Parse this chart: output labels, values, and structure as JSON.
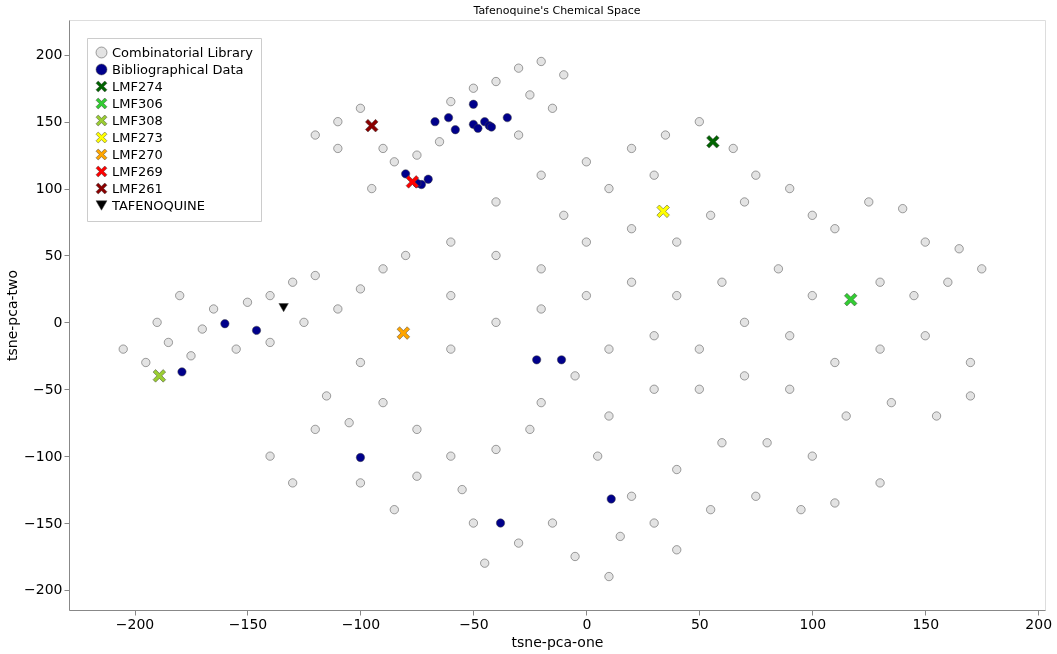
{
  "chart_data": {
    "type": "scatter",
    "title": "Tafenoquine's Chemical Space",
    "xlabel": "tsne-pca-one",
    "ylabel": "tsne-pca-two",
    "xlim": [
      -229,
      203
    ],
    "ylim": [
      -215,
      226
    ],
    "xticks": [
      -200,
      -150,
      -100,
      -50,
      0,
      50,
      100,
      150,
      200
    ],
    "yticks": [
      -200,
      -150,
      -100,
      -50,
      0,
      50,
      100,
      150,
      200
    ],
    "grid": false,
    "legend": "top left",
    "series": [
      {
        "name": "Combinatorial Library",
        "color": "#e3e3e3",
        "marker": "circle",
        "x": [
          -205,
          -195,
          -185,
          -175,
          -170,
          -165,
          -150,
          -140,
          -130,
          -120,
          -155,
          -140,
          -125,
          -110,
          -100,
          -90,
          -180,
          -190,
          -120,
          -110,
          -100,
          -90,
          -85,
          -75,
          -65,
          -60,
          -50,
          -40,
          -30,
          -20,
          -10,
          -25,
          -15,
          -30,
          -110,
          -95,
          -40,
          -20,
          0,
          10,
          20,
          35,
          50,
          65,
          75,
          30,
          -10,
          0,
          20,
          40,
          55,
          70,
          90,
          100,
          110,
          125,
          140,
          150,
          165,
          175,
          160,
          145,
          130,
          100,
          85,
          60,
          40,
          20,
          0,
          -20,
          -40,
          -60,
          -80,
          -60,
          -40,
          -20,
          -60,
          -100,
          -115,
          -120,
          -105,
          -90,
          -75,
          -60,
          -75,
          -55,
          -40,
          -20,
          -5,
          -25,
          10,
          30,
          50,
          70,
          90,
          110,
          130,
          150,
          170,
          170,
          155,
          135,
          115,
          90,
          70,
          50,
          30,
          10,
          5,
          20,
          30,
          15,
          -5,
          10,
          -15,
          -30,
          -45,
          -50,
          40,
          55,
          75,
          95,
          110,
          130,
          60,
          80,
          100,
          40,
          -140,
          -130,
          -100,
          -85
        ],
        "values": [
          -20,
          -30,
          -15,
          -25,
          -5,
          10,
          15,
          20,
          30,
          35,
          -20,
          -15,
          0,
          10,
          25,
          40,
          20,
          0,
          140,
          150,
          160,
          130,
          120,
          125,
          135,
          165,
          175,
          180,
          190,
          195,
          185,
          170,
          160,
          140,
          130,
          100,
          90,
          110,
          120,
          100,
          130,
          140,
          150,
          130,
          110,
          110,
          80,
          60,
          70,
          60,
          80,
          90,
          100,
          80,
          70,
          90,
          85,
          60,
          55,
          40,
          30,
          20,
          30,
          20,
          40,
          30,
          20,
          30,
          20,
          40,
          50,
          60,
          50,
          20,
          0,
          10,
          -20,
          -30,
          -55,
          -80,
          -75,
          -60,
          -80,
          -100,
          -115,
          -125,
          -95,
          -60,
          -40,
          -80,
          -20,
          -10,
          -20,
          0,
          -10,
          -30,
          -20,
          -10,
          -30,
          -55,
          -70,
          -60,
          -70,
          -50,
          -40,
          -50,
          -50,
          -70,
          -100,
          -130,
          -150,
          -160,
          -175,
          -190,
          -150,
          -165,
          -180,
          -150,
          -110,
          -140,
          -130,
          -140,
          -135,
          -120,
          -90,
          -90,
          -100,
          -170,
          -100,
          -120,
          -120,
          -140
        ]
      },
      {
        "name": "Bibliographical Data",
        "color": "#00008b",
        "marker": "circle",
        "x": [
          -50,
          -67,
          -61,
          -58,
          -50,
          -48,
          -45,
          -43,
          -42,
          -35,
          -80,
          -73,
          -70,
          -75,
          -160,
          -146,
          -179,
          -22,
          -11,
          -100,
          11,
          -38
        ],
        "values": [
          163,
          150,
          153,
          144,
          148,
          145,
          150,
          147,
          146,
          153,
          111,
          103,
          107,
          104,
          -1,
          -6,
          -37,
          -28,
          -28,
          -101,
          -132,
          -150
        ]
      },
      {
        "name": "LMF274",
        "color": "#006400",
        "marker": "cross",
        "x": [
          56
        ],
        "values": [
          135
        ]
      },
      {
        "name": "LMF306",
        "color": "#32cd32",
        "marker": "cross",
        "x": [
          117
        ],
        "values": [
          17
        ]
      },
      {
        "name": "LMF308",
        "color": "#9acd32",
        "marker": "cross",
        "x": [
          -189
        ],
        "values": [
          -40
        ]
      },
      {
        "name": "LMF273",
        "color": "#ffff00",
        "marker": "cross",
        "x": [
          34
        ],
        "values": [
          83
        ]
      },
      {
        "name": "LMF270",
        "color": "#ffa500",
        "marker": "cross",
        "x": [
          -81
        ],
        "values": [
          -8
        ]
      },
      {
        "name": "LMF269",
        "color": "#ff0000",
        "marker": "cross",
        "x": [
          -77
        ],
        "values": [
          105
        ]
      },
      {
        "name": "LMF261",
        "color": "#8b0000",
        "marker": "cross",
        "x": [
          -95
        ],
        "values": [
          147
        ]
      },
      {
        "name": "TAFENOQUINE",
        "color": "#000000",
        "marker": "triangle",
        "x": [
          -134
        ],
        "values": [
          11
        ]
      }
    ]
  }
}
